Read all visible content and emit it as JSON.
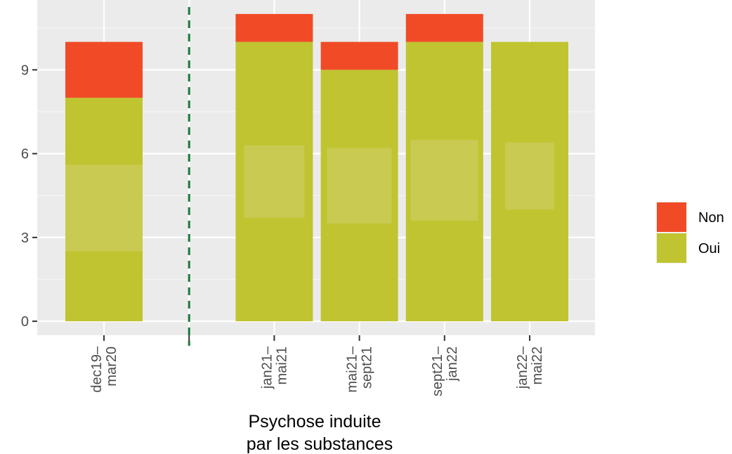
{
  "chart_data": {
    "type": "bar",
    "stacked": true,
    "categories": [
      {
        "line1": "dec19–",
        "line2": "mar20"
      },
      {
        "line1": "jan21–",
        "line2": "mai21"
      },
      {
        "line1": "mai21–",
        "line2": "sept21"
      },
      {
        "line1": "sept21–",
        "line2": "jan22"
      },
      {
        "line1": "jan22–",
        "line2": "mai22"
      }
    ],
    "series": [
      {
        "name": "Oui",
        "color": "#c0c430",
        "values": [
          8,
          10,
          9,
          10,
          10
        ]
      },
      {
        "name": "Non",
        "color": "#f04b26",
        "values": [
          2,
          1,
          1,
          1,
          0
        ]
      }
    ],
    "xlabel_lines": [
      "Psychose induite",
      "par les substances"
    ],
    "ylabel": "",
    "y_ticks": [
      0,
      3,
      6,
      9
    ],
    "ylim": [
      -0.5,
      11.5
    ],
    "grid": true,
    "vline": {
      "after_category": "dec19–mar20",
      "style": "dashed",
      "color": "#1a7a3a"
    },
    "legend_position": "right",
    "background": "#ebebeb"
  }
}
